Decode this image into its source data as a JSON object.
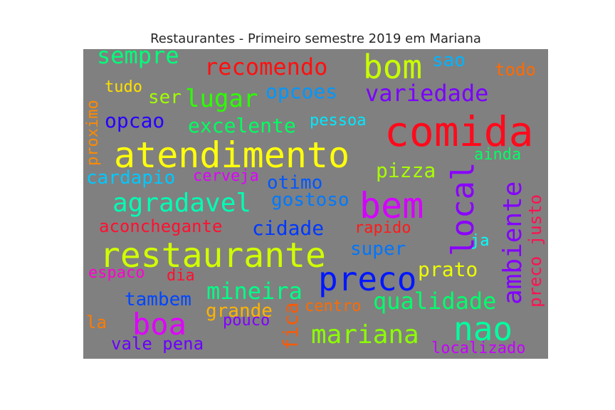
{
  "chart_data": {
    "type": "wordcloud",
    "title": "Restaurantes - Primeiro semestre 2019 em Mariana",
    "background": "#808080",
    "words": [
      {
        "text": "comida",
        "color": "#ff0a1c"
      },
      {
        "text": "atendimento",
        "color": "#ffff0c"
      },
      {
        "text": "restaurante",
        "color": "#d0ff00"
      },
      {
        "text": "bem",
        "color": "#d400ff"
      },
      {
        "text": "bom",
        "color": "#c8ff00"
      },
      {
        "text": "local",
        "color": "#8a00ff"
      },
      {
        "text": "ambiente",
        "color": "#8300ff"
      },
      {
        "text": "preco",
        "color": "#0017ff"
      },
      {
        "text": "nao",
        "color": "#00ff9e"
      },
      {
        "text": "boa",
        "color": "#e000ff"
      },
      {
        "text": "mariana",
        "color": "#8cff00"
      },
      {
        "text": "agradavel",
        "color": "#00ffb4"
      },
      {
        "text": "lugar",
        "color": "#2cff00"
      },
      {
        "text": "recomendo",
        "color": "#ff1010"
      },
      {
        "text": "variedade",
        "color": "#7a00ff"
      },
      {
        "text": "mineira",
        "color": "#00ff86"
      },
      {
        "text": "qualidade",
        "color": "#00ff6c"
      },
      {
        "text": "sempre",
        "color": "#00ff7a"
      },
      {
        "text": "excelente",
        "color": "#00ff60"
      },
      {
        "text": "cidade",
        "color": "#0038ff"
      },
      {
        "text": "opcao",
        "color": "#2600ff"
      },
      {
        "text": "opcoes",
        "color": "#0097ff"
      },
      {
        "text": "pizza",
        "color": "#a8ff00"
      },
      {
        "text": "prato",
        "color": "#ecff00"
      },
      {
        "text": "gostoso",
        "color": "#0079ff"
      },
      {
        "text": "otimo",
        "color": "#0056ff"
      },
      {
        "text": "super",
        "color": "#0075ff"
      },
      {
        "text": "tambem",
        "color": "#0046ff"
      },
      {
        "text": "grande",
        "color": "#ffb300"
      },
      {
        "text": "fica",
        "color": "#ff5800"
      },
      {
        "text": "cardapio",
        "color": "#00c8ff"
      },
      {
        "text": "aconchegante",
        "color": "#ff1030"
      },
      {
        "text": "preco justo",
        "color": "#ff1050"
      },
      {
        "text": "vale pena",
        "color": "#6b00ff"
      },
      {
        "text": "ser",
        "color": "#a0ff00"
      },
      {
        "text": "sao",
        "color": "#00b4ff"
      },
      {
        "text": "todo",
        "color": "#ff6a00"
      },
      {
        "text": "tudo",
        "color": "#ffe000"
      },
      {
        "text": "pessoa",
        "color": "#00e8ff"
      },
      {
        "text": "ainda",
        "color": "#00ff64"
      },
      {
        "text": "proximo",
        "color": "#ff8a00"
      },
      {
        "text": "cerveja",
        "color": "#e000ff"
      },
      {
        "text": "rapido",
        "color": "#ff1a1a"
      },
      {
        "text": "ja",
        "color": "#00ffff"
      },
      {
        "text": "espaco",
        "color": "#ff00d0"
      },
      {
        "text": "dia",
        "color": "#ff1030"
      },
      {
        "text": "centro",
        "color": "#ff6a00"
      },
      {
        "text": "pouco",
        "color": "#8000ff"
      },
      {
        "text": "la",
        "color": "#ff7a00"
      },
      {
        "text": "localizado",
        "color": "#c800ff"
      }
    ]
  }
}
